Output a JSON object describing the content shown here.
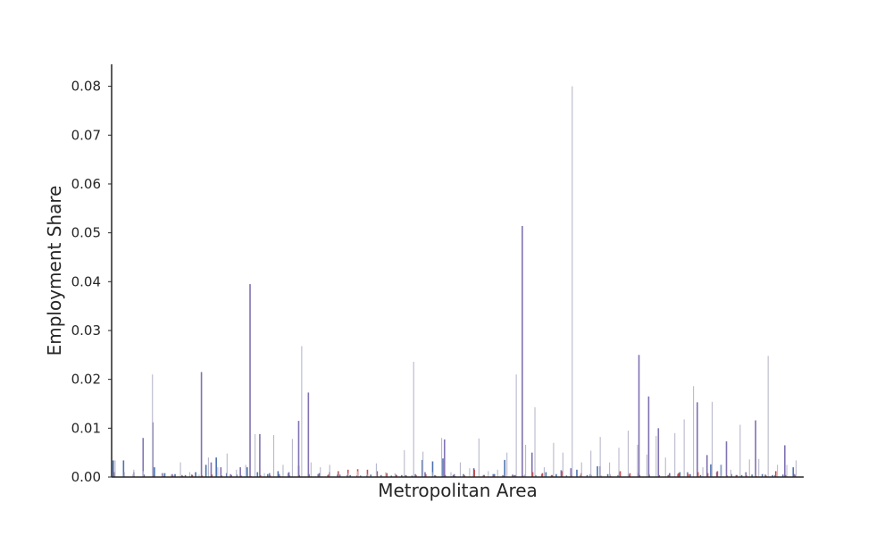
{
  "chart_data": {
    "type": "bar",
    "title": "",
    "xlabel": "Metropolitan Area",
    "ylabel": "Employment Share",
    "ylim": [
      0,
      0.0845
    ],
    "y_ticks": [
      0.0,
      0.01,
      0.02,
      0.03,
      0.04,
      0.05,
      0.06,
      0.07,
      0.08
    ],
    "y_tick_labels": [
      "0.00",
      "0.01",
      "0.02",
      "0.03",
      "0.04",
      "0.05",
      "0.06",
      "0.07",
      "0.08"
    ],
    "x_tick_labels_shown": false,
    "grid": false,
    "legend": "none",
    "series": [
      {
        "color": "#4c72b0",
        "values": [
          0.0034,
          0.0034,
          0.001,
          0.0005,
          0.002,
          0.0008,
          0.0006,
          0.0004,
          0.001,
          0.0025,
          0.004,
          0.0008,
          0.0005,
          0.002,
          0.001,
          0.0006,
          0.0012,
          0.0008,
          0.0023,
          0.0006,
          0.0008,
          0.001,
          0.0005,
          0.0004,
          0.0003,
          0.0005,
          0.0004,
          0.0003,
          0.0004,
          0.0003,
          0.0035,
          0.0032,
          0.0038,
          0.0004,
          0.0006,
          0.0018,
          0.0004,
          0.0006,
          0.0035,
          0.0004,
          0.0005,
          0.0004,
          0.001,
          0.0006,
          0.0003,
          0.0015,
          0.0004,
          0.0022,
          0.0006,
          0.0004,
          0.0005,
          0.0008,
          0.0006,
          0.0004,
          0.0008,
          0.001,
          0.0006,
          0.0004,
          0.0026,
          0.0025,
          0.0006,
          0.0004,
          0.0005,
          0.0006,
          0.0004,
          0.0005,
          0.002
        ]
      },
      {
        "color": "#8172b2",
        "values": [
          0.001,
          0.0004,
          0.0006,
          0.008,
          0.0112,
          0.0008,
          0.0006,
          0.0004,
          0.0005,
          0.0215,
          0.003,
          0.002,
          0.0006,
          0.002,
          0.0395,
          0.0088,
          0.0008,
          0.0006,
          0.001,
          0.0115,
          0.0173,
          0.0006,
          0.0004,
          0.0005,
          0.0004,
          0.0003,
          0.0004,
          0.0003,
          0.0004,
          0.0005,
          0.0004,
          0.0006,
          0.001,
          0.0004,
          0.0077,
          0.0006,
          0.0004,
          0.0005,
          0.0004,
          0.0006,
          0.0004,
          0.0005,
          0.0514,
          0.005,
          0.0006,
          0.0004,
          0.0014,
          0.0018,
          0.0004,
          0.0006,
          0.0022,
          0.0006,
          0.001,
          0.0004,
          0.025,
          0.0165,
          0.01,
          0.0004,
          0.0006,
          0.001,
          0.0153,
          0.0045,
          0.001,
          0.0073,
          0.0004,
          0.001,
          0.0116,
          0.0005,
          0.0004,
          0.0065,
          0.0006
        ]
      },
      {
        "color": "#c44e52",
        "values": [
          0.0004,
          0.0003,
          0.0002,
          0.0003,
          0.0004,
          0.0002,
          0.0003,
          0.0002,
          0.0004,
          0.0003,
          0.0005,
          0.0003,
          0.0004,
          0.0003,
          0.0002,
          0.0004,
          0.0003,
          0.0002,
          0.0003,
          0.0004,
          0.0003,
          0.0002,
          0.0005,
          0.0012,
          0.0015,
          0.0016,
          0.0015,
          0.0012,
          0.0008,
          0.0004,
          0.0003,
          0.0004,
          0.0006,
          0.0003,
          0.0004,
          0.0002,
          0.0003,
          0.0015,
          0.0004,
          0.0003,
          0.0002,
          0.0004,
          0.0003,
          0.001,
          0.0008,
          0.0004,
          0.0012,
          0.0004,
          0.0008,
          0.0004,
          0.0003,
          0.0002,
          0.0012,
          0.0008,
          0.0004,
          0.0003,
          0.0002,
          0.0004,
          0.0008,
          0.0006,
          0.001,
          0.0008,
          0.0012,
          0.0003,
          0.0004,
          0.0003,
          0.0002,
          0.0003,
          0.0012,
          0.0004,
          0.0003
        ]
      },
      {
        "color": "#b8b8cc",
        "values": [
          0.0034,
          0.001,
          0.0015,
          0.0012,
          0.021,
          0.0008,
          0.0005,
          0.003,
          0.001,
          0.0005,
          0.004,
          0.002,
          0.0048,
          0.0015,
          0.0025,
          0.0088,
          0.0008,
          0.0086,
          0.0025,
          0.0078,
          0.0268,
          0.003,
          0.002,
          0.0025,
          0.001,
          0.0008,
          0.0012,
          0.0006,
          0.0028,
          0.001,
          0.0008,
          0.0055,
          0.0236,
          0.0052,
          0.001,
          0.008,
          0.001,
          0.003,
          0.0018,
          0.0079,
          0.0012,
          0.0015,
          0.005,
          0.021,
          0.0066,
          0.0143,
          0.002,
          0.007,
          0.005,
          0.08,
          0.003,
          0.0054,
          0.0082,
          0.003,
          0.006,
          0.0095,
          0.0066,
          0.0046,
          0.0084,
          0.004,
          0.009,
          0.0118,
          0.0186,
          0.002,
          0.0154,
          0.0025,
          0.0015,
          0.0107,
          0.0036,
          0.0037,
          0.0248,
          0.0025,
          0.0025,
          0.0034
        ]
      }
    ]
  }
}
